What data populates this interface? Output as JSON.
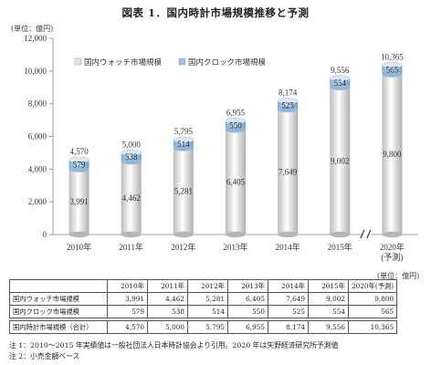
{
  "figure_title": "図表 1．国内時計市場規模推移と予測",
  "unit_label": "(単位：億円)",
  "table_unit_label": "(単位：億円)",
  "chart_data": {
    "type": "bar",
    "stacked": true,
    "categories": [
      "2010年",
      "2011年",
      "2012年",
      "2013年",
      "2014年",
      "2015年",
      "2020年\n(予測)"
    ],
    "series": [
      {
        "name": "国内ウォッチ市場規模",
        "values": [
          3991,
          4462,
          5281,
          6405,
          7649,
          9002,
          9800
        ],
        "color": "#e6e6e6"
      },
      {
        "name": "国内クロック市場規模",
        "values": [
          579,
          538,
          514,
          550,
          525,
          554,
          565
        ],
        "color": "#9dc3e6"
      }
    ],
    "totals": [
      4570,
      5000,
      5795,
      6955,
      8174,
      9556,
      10365
    ],
    "yticks": [
      "0",
      "2,000",
      "4,000",
      "6,000",
      "8,000",
      "10,000",
      "12,000"
    ],
    "ylim": [
      0,
      12000
    ],
    "legend": "top-left",
    "axis_break": "between 2015年 and 2020年"
  },
  "table": {
    "columns": [
      "2010年",
      "2011年",
      "2012年",
      "2013年",
      "2014年",
      "2015年",
      "2020年(予測)"
    ],
    "rows": [
      {
        "label": "国内ウォッチ市場規模",
        "values": [
          "3,991",
          "4,462",
          "5,281",
          "6,405",
          "7,649",
          "9,002",
          "9,800"
        ]
      },
      {
        "label": "国内クロック市場規模",
        "values": [
          "579",
          "538",
          "514",
          "550",
          "525",
          "554",
          "565"
        ]
      },
      {
        "label": "国内時計市場規模（合計）",
        "values": [
          "4,570",
          "5,000",
          "5,795",
          "6,955",
          "8,174",
          "9,556",
          "10,365"
        ]
      }
    ]
  },
  "notes": [
    "注 1：2010～2015 年実績値は一般社団法人日本時計協会より引用。2020 年は矢野経済研究所予測値",
    "注 2：小売金額ベース"
  ]
}
